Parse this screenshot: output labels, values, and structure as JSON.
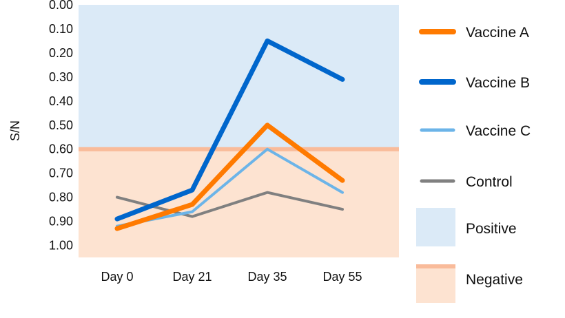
{
  "chart_data": {
    "type": "line",
    "ylabel": "S/N",
    "xlabel": "",
    "categories": [
      "Day 0",
      "Day 21",
      "Day 35",
      "Day 55"
    ],
    "ylim": [
      0.0,
      1.05
    ],
    "y_axis_inverted": true,
    "y_ticks": [
      "0.00",
      "0.10",
      "0.20",
      "0.30",
      "0.40",
      "0.50",
      "0.60",
      "0.70",
      "0.80",
      "0.90",
      "1.00"
    ],
    "threshold": 0.6,
    "regions": [
      {
        "name": "Positive",
        "from": 0.0,
        "to": 0.6,
        "color": "#dbeaf7"
      },
      {
        "name": "Negative",
        "from": 0.6,
        "to": 1.05,
        "color": "#fde3d1"
      }
    ],
    "threshold_color": "#f9bb9a",
    "series": [
      {
        "name": "Vaccine A",
        "values": [
          0.93,
          0.83,
          0.5,
          0.73
        ],
        "color": "#ff7a00",
        "width": 7
      },
      {
        "name": "Vaccine B",
        "values": [
          0.89,
          0.77,
          0.15,
          0.31
        ],
        "color": "#0066cc",
        "width": 7
      },
      {
        "name": "Vaccine C",
        "values": [
          0.92,
          0.86,
          0.6,
          0.78
        ],
        "color": "#6cb4e8",
        "width": 4
      },
      {
        "name": "Control",
        "values": [
          0.8,
          0.88,
          0.78,
          0.85
        ],
        "color": "#808080",
        "width": 4
      }
    ],
    "legend_position": "right",
    "grid": false
  }
}
